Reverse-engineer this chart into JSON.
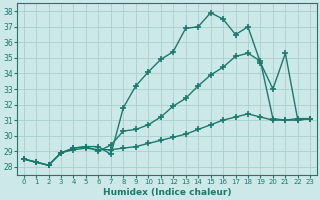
{
  "line1": {
    "x": [
      0,
      1,
      2,
      3,
      4,
      5,
      6,
      7,
      8,
      9,
      10,
      11,
      12,
      13,
      14,
      15,
      16,
      17,
      18,
      19,
      20,
      21,
      22,
      23
    ],
    "y": [
      28.5,
      28.3,
      28.1,
      28.9,
      29.2,
      29.3,
      29.3,
      28.8,
      31.8,
      33.2,
      34.1,
      34.9,
      35.4,
      36.9,
      37.0,
      37.9,
      37.5,
      36.5,
      37.0,
      34.7,
      33.0,
      35.3,
      31.0,
      31.1
    ]
  },
  "line2": {
    "x": [
      0,
      1,
      2,
      3,
      4,
      5,
      6,
      7,
      8,
      9,
      10,
      11,
      12,
      13,
      14,
      15,
      16,
      17,
      18,
      19,
      20,
      21,
      22,
      23
    ],
    "y": [
      28.5,
      28.3,
      28.1,
      28.9,
      29.2,
      29.3,
      29.0,
      29.4,
      30.3,
      30.4,
      30.7,
      31.2,
      31.9,
      32.4,
      33.2,
      33.9,
      34.4,
      35.1,
      35.3,
      34.8,
      31.1,
      31.0,
      31.1,
      31.1
    ]
  },
  "line3": {
    "x": [
      0,
      1,
      2,
      3,
      4,
      5,
      6,
      7,
      8,
      9,
      10,
      11,
      12,
      13,
      14,
      15,
      16,
      17,
      18,
      19,
      20,
      21,
      22,
      23
    ],
    "y": [
      28.5,
      28.3,
      28.1,
      28.9,
      29.1,
      29.2,
      29.1,
      29.1,
      29.2,
      29.3,
      29.5,
      29.7,
      29.9,
      30.1,
      30.4,
      30.7,
      31.0,
      31.2,
      31.4,
      31.2,
      31.0,
      31.0,
      31.0,
      31.1
    ]
  },
  "color": "#1a7a6e",
  "bg_color": "#cde8e8",
  "grid_color": "#aacfcf",
  "xlabel": "Humidex (Indice chaleur)",
  "ylim": [
    27.5,
    38.5
  ],
  "xlim": [
    -0.5,
    23.5
  ],
  "yticks": [
    28,
    29,
    30,
    31,
    32,
    33,
    34,
    35,
    36,
    37,
    38
  ],
  "xticks": [
    0,
    1,
    2,
    3,
    4,
    5,
    6,
    7,
    8,
    9,
    10,
    11,
    12,
    13,
    14,
    15,
    16,
    17,
    18,
    19,
    20,
    21,
    22,
    23
  ],
  "marker": "+",
  "markersize": 4,
  "linewidth": 1.0
}
